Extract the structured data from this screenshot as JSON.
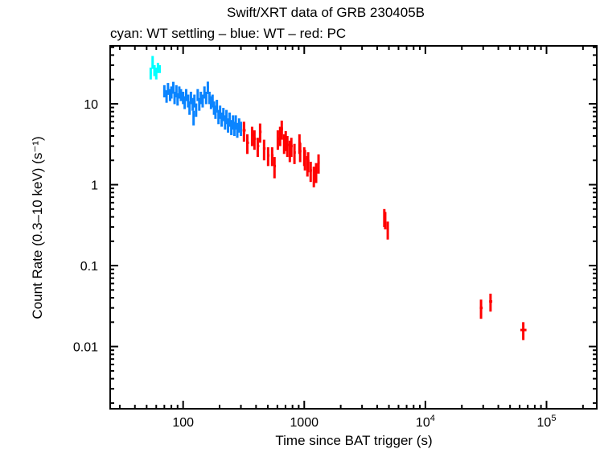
{
  "chart_data": {
    "type": "scatter",
    "title": "Swift/XRT data of GRB 230405B",
    "subtitle": "cyan: WT settling – blue: WT – red: PC",
    "xlabel": "Time since BAT trigger (s)",
    "ylabel": "Count Rate (0.3–10 keV) (s⁻¹)",
    "xscale": "log",
    "yscale": "log",
    "xlim": [
      25,
      260000
    ],
    "ylim": [
      0.0017,
      52
    ],
    "grid": false,
    "xticks": [
      {
        "value": 100,
        "label": "100"
      },
      {
        "value": 1000,
        "label": "1000"
      },
      {
        "value": 10000,
        "label": "10",
        "exp": "4"
      },
      {
        "value": 100000,
        "label": "10",
        "exp": "5"
      }
    ],
    "yticks": [
      {
        "value": 10,
        "label": "10"
      },
      {
        "value": 1,
        "label": "1"
      },
      {
        "value": 0.1,
        "label": "0.1"
      },
      {
        "value": 0.01,
        "label": "0.01"
      }
    ],
    "point_format": [
      "time_s",
      "time_err_s",
      "rate",
      "rate_err"
    ],
    "series": [
      {
        "mode": "WT settling",
        "color": "#00ffff",
        "points": [
          [
            54,
            0.7,
            24,
            4
          ],
          [
            56,
            0.7,
            33,
            6
          ],
          [
            58,
            0.7,
            26,
            4
          ],
          [
            60,
            0.7,
            24,
            4
          ],
          [
            62,
            0.7,
            28,
            4
          ],
          [
            64,
            0.7,
            27,
            3
          ]
        ]
      },
      {
        "mode": "WT",
        "color": "#0a84ff",
        "points": [
          [
            70,
            1,
            14.5,
            2.5
          ],
          [
            73,
            1,
            12.5,
            2.2
          ],
          [
            75,
            1,
            15.5,
            2.6
          ],
          [
            78,
            1,
            13,
            2.2
          ],
          [
            80,
            1,
            14,
            2.4
          ],
          [
            83,
            1,
            16,
            2.7
          ],
          [
            85,
            1,
            12,
            2.1
          ],
          [
            88,
            1,
            14.5,
            2.5
          ],
          [
            90,
            1,
            11.5,
            2
          ],
          [
            93,
            1,
            14,
            2.4
          ],
          [
            96,
            1.2,
            13,
            2.2
          ],
          [
            100,
            1.2,
            12,
            2.1
          ],
          [
            103,
            1.2,
            10.5,
            1.9
          ],
          [
            106,
            1.2,
            13,
            2.2
          ],
          [
            110,
            1.3,
            11,
            2
          ],
          [
            113,
            1.3,
            9,
            1.7
          ],
          [
            116,
            1.3,
            12,
            2.1
          ],
          [
            120,
            1.4,
            10,
            1.8
          ],
          [
            122,
            1.4,
            6.8,
            1.4
          ],
          [
            124,
            1.4,
            11,
            2
          ],
          [
            128,
            1.5,
            8.5,
            1.6
          ],
          [
            132,
            1.5,
            13,
            2.2
          ],
          [
            136,
            1.6,
            10,
            1.8
          ],
          [
            140,
            1.6,
            12,
            2.1
          ],
          [
            145,
            1.7,
            11,
            2
          ],
          [
            150,
            1.7,
            14,
            2.4
          ],
          [
            155,
            1.8,
            12,
            2.1
          ],
          [
            160,
            1.8,
            16,
            2.8
          ],
          [
            165,
            1.9,
            12,
            2.1
          ],
          [
            170,
            2,
            10.5,
            1.9
          ],
          [
            175,
            2,
            11,
            2
          ],
          [
            180,
            2.1,
            9,
            1.7
          ],
          [
            185,
            2.1,
            8,
            1.5
          ],
          [
            190,
            2.2,
            9.5,
            1.7
          ],
          [
            196,
            2.3,
            7,
            1.4
          ],
          [
            202,
            2.3,
            8,
            1.5
          ],
          [
            208,
            2.4,
            6.5,
            1.3
          ],
          [
            215,
            2.5,
            7.5,
            1.4
          ],
          [
            222,
            2.6,
            6,
            1.2
          ],
          [
            228,
            2.6,
            7,
            1.4
          ],
          [
            235,
            2.7,
            5.5,
            1.1
          ],
          [
            242,
            2.8,
            6.5,
            1.3
          ],
          [
            250,
            2.9,
            5.2,
            1.1
          ],
          [
            258,
            3,
            6,
            1.2
          ],
          [
            265,
            3,
            5,
            1
          ],
          [
            272,
            3.1,
            6,
            1.2
          ],
          [
            280,
            3.2,
            4.8,
            1
          ],
          [
            290,
            3.3,
            5.5,
            1.1
          ],
          [
            300,
            3.4,
            5,
            1
          ]
        ]
      },
      {
        "mode": "PC",
        "color": "#ff0000",
        "points": [
          [
            318,
            8,
            4.7,
            1.3
          ],
          [
            339,
            8,
            3.3,
            0.9
          ],
          [
            371,
            8,
            4.1,
            1.1
          ],
          [
            388,
            8,
            3.7,
            1
          ],
          [
            413,
            9,
            3,
            0.8
          ],
          [
            432,
            9,
            4.5,
            1.2
          ],
          [
            466,
            10,
            2.8,
            0.8
          ],
          [
            503,
            10,
            2.3,
            0.6
          ],
          [
            543,
            11,
            2.3,
            0.6
          ],
          [
            568,
            11,
            1.7,
            0.5
          ],
          [
            605,
            12,
            3.7,
            1
          ],
          [
            632,
            12,
            4.1,
            1.1
          ],
          [
            652,
            12,
            4.9,
            1.3
          ],
          [
            682,
            13,
            3.3,
            0.9
          ],
          [
            703,
            13,
            3.6,
            1
          ],
          [
            725,
            13,
            3.1,
            0.9
          ],
          [
            760,
            14,
            2.7,
            0.8
          ],
          [
            782,
            14,
            3,
            0.8
          ],
          [
            830,
            15,
            2.5,
            0.7
          ],
          [
            913,
            16,
            3.3,
            0.9
          ],
          [
            925,
            16,
            2.6,
            0.7
          ],
          [
            1000,
            17,
            2.3,
            0.6
          ],
          [
            1013,
            17,
            2.1,
            0.6
          ],
          [
            1062,
            18,
            1.76,
            0.5
          ],
          [
            1077,
            18,
            1.97,
            0.55
          ],
          [
            1130,
            19,
            1.5,
            0.42
          ],
          [
            1200,
            20,
            1.3,
            0.37
          ],
          [
            1253,
            20,
            1.45,
            0.4
          ],
          [
            1312,
            21,
            1.87,
            0.5
          ],
          [
            4580,
            30,
            0.4,
            0.1
          ],
          [
            4660,
            30,
            0.37,
            0.09
          ],
          [
            4890,
            40,
            0.28,
            0.07
          ],
          [
            28800,
            700,
            0.03,
            0.008
          ],
          [
            34500,
            900,
            0.036,
            0.009
          ],
          [
            64300,
            3500,
            0.016,
            0.004
          ]
        ]
      }
    ]
  }
}
